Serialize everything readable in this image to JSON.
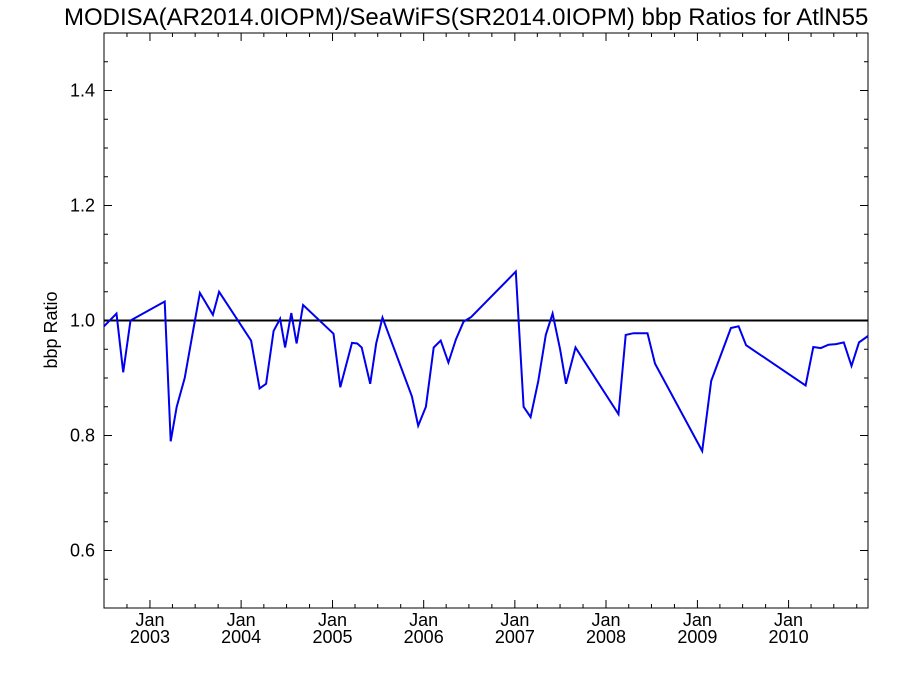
{
  "chart_data": {
    "type": "line",
    "title": "MODISA(AR2014.0IOPM)/SeaWiFS(SR2014.0IOPM)  bbp Ratios for AtlN55",
    "xlabel": "",
    "ylabel": "bbp Ratio",
    "ylim": [
      0.5,
      1.5
    ],
    "xlim": [
      "2002-07-01",
      "2010-11-15"
    ],
    "y_ticks": [
      "0.6",
      "0.8",
      "1.0",
      "1.2",
      "1.4"
    ],
    "x_ticks": [
      {
        "date": "2003-01-01",
        "month": "Jan",
        "year": "2003"
      },
      {
        "date": "2004-01-01",
        "month": "Jan",
        "year": "2004"
      },
      {
        "date": "2005-01-01",
        "month": "Jan",
        "year": "2005"
      },
      {
        "date": "2006-01-01",
        "month": "Jan",
        "year": "2006"
      },
      {
        "date": "2007-01-01",
        "month": "Jan",
        "year": "2007"
      },
      {
        "date": "2008-01-01",
        "month": "Jan",
        "year": "2008"
      },
      {
        "date": "2009-01-01",
        "month": "Jan",
        "year": "2009"
      },
      {
        "date": "2010-01-01",
        "month": "Jan",
        "year": "2010"
      }
    ],
    "reference_line": {
      "y": 1.0,
      "color": "#000000"
    },
    "grid": false,
    "series": [
      {
        "color": "#0000ee",
        "points": [
          [
            "2002-07-01",
            0.99
          ],
          [
            "2002-08-20",
            1.012
          ],
          [
            "2002-09-16",
            0.91
          ],
          [
            "2002-10-15",
            1.0
          ],
          [
            "2003-03-01",
            1.033
          ],
          [
            "2003-03-25",
            0.79
          ],
          [
            "2003-04-18",
            0.85
          ],
          [
            "2003-05-20",
            0.9
          ],
          [
            "2003-06-24",
            0.985
          ],
          [
            "2003-07-20",
            1.048
          ],
          [
            "2003-09-10",
            1.01
          ],
          [
            "2003-10-05",
            1.05
          ],
          [
            "2004-02-10",
            0.965
          ],
          [
            "2004-03-15",
            0.882
          ],
          [
            "2004-04-10",
            0.89
          ],
          [
            "2004-05-10",
            0.982
          ],
          [
            "2004-06-05",
            1.003
          ],
          [
            "2004-06-25",
            0.953
          ],
          [
            "2004-07-20",
            1.013
          ],
          [
            "2004-08-10",
            0.96
          ],
          [
            "2004-09-05",
            1.027
          ],
          [
            "2005-01-05",
            0.977
          ],
          [
            "2005-02-01",
            0.884
          ],
          [
            "2005-03-20",
            0.961
          ],
          [
            "2005-04-10",
            0.96
          ],
          [
            "2005-04-28",
            0.953
          ],
          [
            "2005-06-01",
            0.89
          ],
          [
            "2005-06-25",
            0.96
          ],
          [
            "2005-07-20",
            1.005
          ],
          [
            "2005-11-15",
            0.868
          ],
          [
            "2005-12-10",
            0.817
          ],
          [
            "2006-01-10",
            0.85
          ],
          [
            "2006-02-10",
            0.953
          ],
          [
            "2006-03-10",
            0.965
          ],
          [
            "2006-04-10",
            0.927
          ],
          [
            "2006-05-10",
            0.967
          ],
          [
            "2006-06-10",
            0.998
          ],
          [
            "2006-07-10",
            1.006
          ],
          [
            "2007-01-05",
            1.085
          ],
          [
            "2007-02-05",
            0.85
          ],
          [
            "2007-03-05",
            0.832
          ],
          [
            "2007-04-05",
            0.895
          ],
          [
            "2007-05-05",
            0.975
          ],
          [
            "2007-06-01",
            1.012
          ],
          [
            "2007-07-01",
            0.95
          ],
          [
            "2007-07-25",
            0.89
          ],
          [
            "2007-09-01",
            0.953
          ],
          [
            "2008-02-20",
            0.837
          ],
          [
            "2008-03-20",
            0.975
          ],
          [
            "2008-04-20",
            0.978
          ],
          [
            "2008-06-15",
            0.978
          ],
          [
            "2008-07-15",
            0.925
          ],
          [
            "2009-01-20",
            0.773
          ],
          [
            "2009-02-25",
            0.895
          ],
          [
            "2009-05-15",
            0.987
          ],
          [
            "2009-06-15",
            0.99
          ],
          [
            "2009-07-15",
            0.957
          ],
          [
            "2010-03-10",
            0.887
          ],
          [
            "2010-04-10",
            0.954
          ],
          [
            "2010-05-10",
            0.952
          ],
          [
            "2010-06-10",
            0.958
          ],
          [
            "2010-07-10",
            0.959
          ],
          [
            "2010-08-10",
            0.962
          ],
          [
            "2010-09-10",
            0.921
          ],
          [
            "2010-10-10",
            0.962
          ],
          [
            "2010-11-15",
            0.973
          ]
        ]
      }
    ]
  }
}
